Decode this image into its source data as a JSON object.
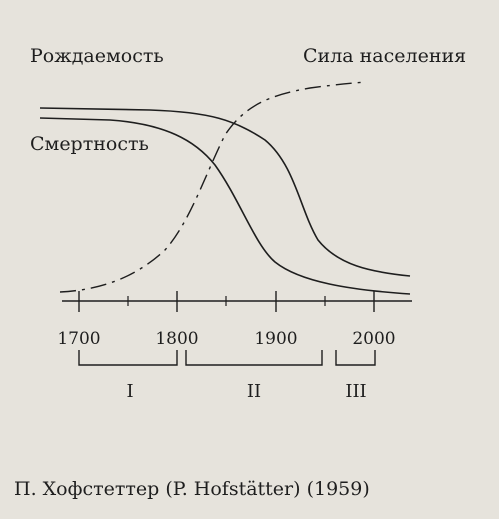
{
  "labels": {
    "birth_rate": "Рождаемость",
    "death_rate": "Смертность",
    "population": "Сила населения"
  },
  "axis": {
    "ticks": [
      "1700",
      "1800",
      "1900",
      "2000"
    ]
  },
  "phases": [
    "I",
    "II",
    "III"
  ],
  "caption": "П. Хофстеттер (P. Hofstätter) (1959)",
  "colors": {
    "ink": "#1e1e1e",
    "paper": "#e6e3dc"
  }
}
